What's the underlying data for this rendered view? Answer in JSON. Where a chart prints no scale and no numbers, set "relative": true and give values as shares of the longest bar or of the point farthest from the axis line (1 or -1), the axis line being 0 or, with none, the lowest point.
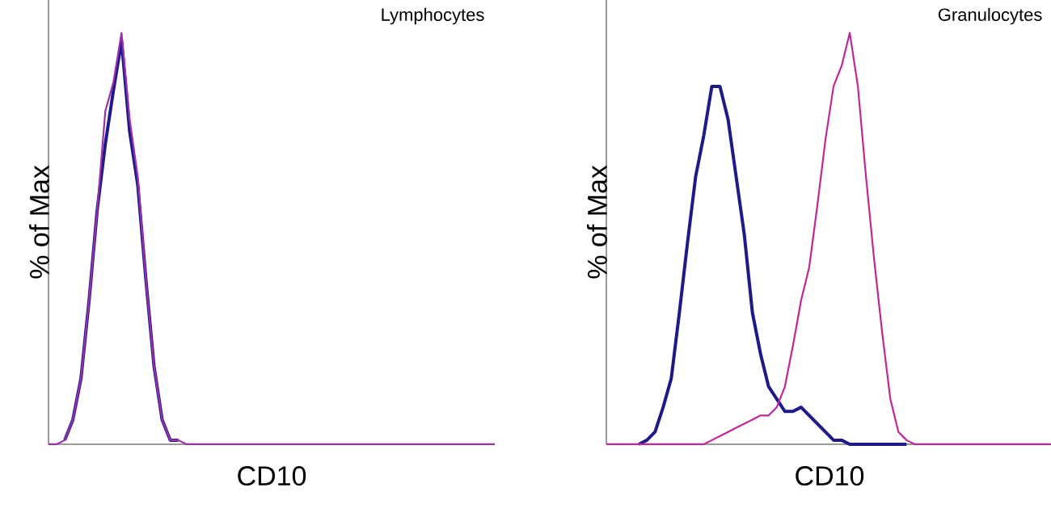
{
  "chart_data": [
    {
      "type": "line",
      "title": "Lymphocytes",
      "xlabel": "CD10",
      "ylabel": "% of Max",
      "relative": true,
      "tick_labels": false,
      "categories": [
        null,
        null,
        null,
        null,
        null,
        null,
        null,
        null,
        null,
        null,
        null,
        null,
        null,
        null,
        null,
        null,
        null,
        null,
        null,
        null,
        null,
        null,
        null,
        null,
        null,
        null,
        null,
        null,
        null,
        null,
        null,
        null,
        null,
        null,
        null,
        null,
        null,
        null,
        null,
        null,
        null,
        null,
        null,
        null,
        null,
        null,
        null,
        null,
        null,
        null,
        null,
        null,
        null,
        null,
        null,
        null
      ],
      "series": [
        {
          "color": "#1f1a8c",
          "values": [
            null,
            null,
            0.01,
            0.06,
            0.16,
            0.35,
            0.57,
            0.73,
            0.86,
            0.98,
            0.76,
            0.63,
            0.4,
            0.19,
            0.06,
            0.01,
            0.01,
            null,
            null,
            null,
            null,
            null,
            null,
            null,
            null,
            null,
            null,
            null,
            null,
            null,
            null,
            null,
            null,
            null,
            null,
            null,
            null,
            null,
            null,
            null,
            null,
            null,
            null,
            null,
            null,
            null,
            null,
            null,
            null,
            null,
            null,
            null,
            null,
            null,
            null,
            null
          ]
        },
        {
          "color": "#9b2fae",
          "values": [
            0,
            0,
            0.01,
            0.06,
            0.16,
            0.35,
            0.57,
            0.81,
            0.88,
            1.0,
            0.79,
            0.65,
            0.4,
            0.19,
            0.06,
            0.01,
            0.01,
            0,
            0,
            0,
            0,
            0,
            0,
            0,
            0,
            0,
            0,
            0,
            0,
            0,
            0,
            0,
            0,
            0,
            0,
            0,
            0,
            0,
            0,
            0,
            0,
            0,
            0,
            0,
            0,
            0,
            0,
            0,
            0,
            0,
            0,
            0,
            0,
            0,
            0,
            0
          ]
        }
      ]
    },
    {
      "type": "line",
      "title": "Granulocytes",
      "xlabel": "CD10",
      "ylabel": "% of Max",
      "relative": true,
      "tick_labels": false,
      "categories": [
        null,
        null,
        null,
        null,
        null,
        null,
        null,
        null,
        null,
        null,
        null,
        null,
        null,
        null,
        null,
        null,
        null,
        null,
        null,
        null,
        null,
        null,
        null,
        null,
        null,
        null,
        null,
        null,
        null,
        null,
        null,
        null,
        null,
        null,
        null,
        null,
        null,
        null,
        null,
        null,
        null,
        null,
        null,
        null,
        null,
        null,
        null,
        null,
        null,
        null,
        null,
        null,
        null,
        null,
        null,
        null
      ],
      "series": [
        {
          "color": "#1f1a8c",
          "values": [
            null,
            null,
            null,
            null,
            0,
            0.01,
            0.03,
            0.09,
            0.16,
            0.32,
            0.49,
            0.65,
            0.75,
            0.87,
            0.87,
            0.79,
            0.65,
            0.51,
            0.32,
            0.22,
            0.14,
            0.11,
            0.08,
            0.08,
            0.09,
            0.07,
            0.05,
            0.03,
            0.01,
            0.01,
            0,
            0,
            0,
            0,
            0,
            0,
            0,
            0,
            null,
            null,
            null,
            null,
            null,
            null,
            null,
            null,
            null,
            null,
            null,
            null,
            null,
            null,
            null,
            null,
            null,
            null
          ]
        },
        {
          "color": "#c0279a",
          "values": [
            0,
            0,
            0,
            0,
            0,
            0,
            0,
            0,
            0,
            0,
            0,
            0,
            0,
            0.01,
            0.02,
            0.03,
            0.04,
            0.05,
            0.06,
            0.07,
            0.07,
            0.09,
            0.14,
            0.24,
            0.35,
            0.43,
            0.58,
            0.74,
            0.87,
            0.92,
            1.0,
            0.87,
            0.65,
            0.45,
            0.27,
            0.11,
            0.03,
            0.01,
            0,
            0,
            0,
            0,
            0,
            0,
            0,
            0,
            0,
            0,
            0,
            0,
            0,
            0,
            0,
            0,
            0,
            0
          ]
        }
      ]
    }
  ]
}
